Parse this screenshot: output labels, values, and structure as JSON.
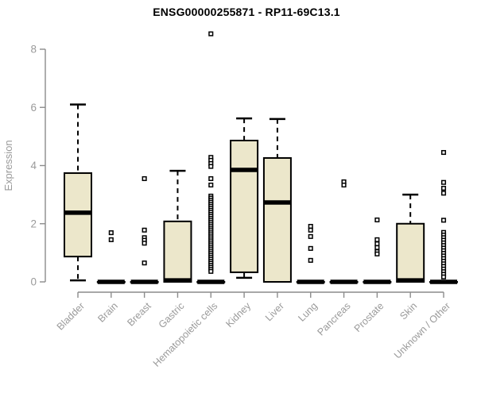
{
  "page": {
    "title": "ENSG00000255871 - RP11-69C13.1"
  },
  "chart_data": {
    "type": "boxplot",
    "title": "ENSG00000255871 - RP11-69C13.1",
    "xlabel": "",
    "ylabel": "Expression",
    "ylim": [
      0,
      8
    ],
    "yticks": [
      0,
      2,
      4,
      6,
      8
    ],
    "grid": false,
    "legend": "none",
    "box_fill": "#ECE7CB",
    "box_stroke": "#000000",
    "median_color": "#000000",
    "axis_color": "#8C8C8C",
    "tick_label_color": "#9A9A9A",
    "title_color": "#000000",
    "outlier_marker": "open-square",
    "categories": [
      "Bladder",
      "Brain",
      "Breast",
      "Gastric",
      "Hematopoietic cells",
      "Kidney",
      "Liver",
      "Lung",
      "Pancreas",
      "Prostate",
      "Skin",
      "Unknown / Other"
    ],
    "series": [
      {
        "category": "Bladder",
        "whisker_low": 0.05,
        "q1": 0.87,
        "median": 2.38,
        "q3": 3.74,
        "whisker_high": 6.1,
        "outliers": []
      },
      {
        "category": "Brain",
        "whisker_low": 0,
        "q1": 0,
        "median": 0,
        "q3": 0,
        "whisker_high": 0,
        "outliers": [
          1.69,
          1.45
        ]
      },
      {
        "category": "Breast",
        "whisker_low": 0,
        "q1": 0,
        "median": 0,
        "q3": 0,
        "whisker_high": 0,
        "outliers": [
          3.55,
          1.78,
          1.52,
          1.43,
          1.33,
          0.65
        ]
      },
      {
        "category": "Gastric",
        "whisker_low": 0,
        "q1": 0,
        "median": 0.05,
        "q3": 2.08,
        "whisker_high": 3.82,
        "outliers": []
      },
      {
        "category": "Hematopoietic cells",
        "whisker_low": 0,
        "q1": 0,
        "median": 0,
        "q3": 0,
        "whisker_high": 0,
        "outliers": [
          8.53,
          4.28,
          4.18,
          4.07,
          3.97,
          3.55,
          3.33,
          2.95,
          2.88,
          2.81,
          2.74,
          2.67,
          2.6,
          2.53,
          2.46,
          2.39,
          2.32,
          2.25,
          2.18,
          2.11,
          2.04,
          1.97,
          1.9,
          1.83,
          1.76,
          1.69,
          1.62,
          1.55,
          1.48,
          1.41,
          1.34,
          1.27,
          1.2,
          1.13,
          1.06,
          0.99,
          0.92,
          0.85,
          0.78,
          0.71,
          0.64,
          0.57,
          0.5,
          0.43,
          0.36
        ]
      },
      {
        "category": "Kidney",
        "whisker_low": 0.14,
        "q1": 0.33,
        "median": 3.85,
        "q3": 4.86,
        "whisker_high": 5.62,
        "outliers": []
      },
      {
        "category": "Liver",
        "whisker_low": 0,
        "q1": 0,
        "median": 2.73,
        "q3": 4.26,
        "whisker_high": 5.6,
        "outliers": []
      },
      {
        "category": "Lung",
        "whisker_low": 0,
        "q1": 0,
        "median": 0,
        "q3": 0,
        "whisker_high": 0,
        "outliers": [
          1.91,
          1.78,
          1.56,
          1.15,
          0.74
        ]
      },
      {
        "category": "Pancreas",
        "whisker_low": 0,
        "q1": 0,
        "median": 0,
        "q3": 0,
        "whisker_high": 0,
        "outliers": [
          3.44,
          3.33
        ]
      },
      {
        "category": "Prostate",
        "whisker_low": 0,
        "q1": 0,
        "median": 0,
        "q3": 0,
        "whisker_high": 0,
        "outliers": [
          2.13,
          1.45,
          1.31,
          1.18,
          1.04,
          0.96
        ]
      },
      {
        "category": "Skin",
        "whisker_low": 0,
        "q1": 0,
        "median": 0.05,
        "q3": 2.0,
        "whisker_high": 3.0,
        "outliers": []
      },
      {
        "category": "Unknown / Other",
        "whisker_low": 0,
        "q1": 0,
        "median": 0,
        "q3": 0,
        "whisker_high": 0,
        "outliers": [
          4.45,
          3.42,
          3.22,
          3.05,
          2.12,
          1.7,
          1.61,
          1.52,
          1.43,
          1.34,
          1.25,
          1.16,
          1.07,
          0.98,
          0.89,
          0.8,
          0.71,
          0.62,
          0.53,
          0.44,
          0.35,
          0.26,
          0.17
        ]
      }
    ]
  }
}
